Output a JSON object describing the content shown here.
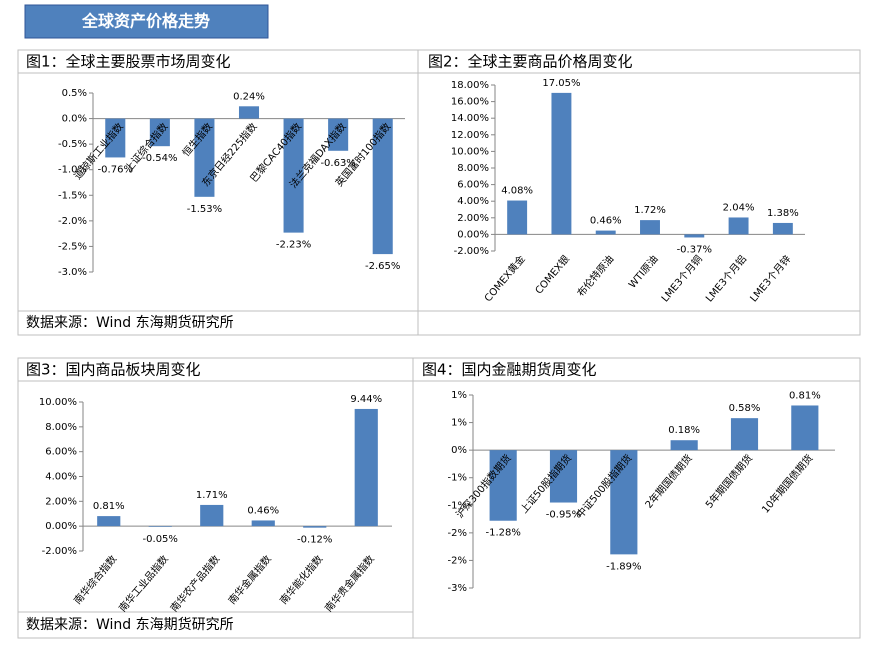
{
  "header": {
    "title": "全球资产价格走势"
  },
  "sources": [
    "数据来源：Wind 东海期货研究所",
    "数据来源：Wind  东海期货研究所"
  ],
  "chart_data": [
    {
      "type": "bar",
      "title": "图1：全球主要股票市场周变化",
      "color": "#4f81bd",
      "categories": [
        "道琼斯工业指数",
        "上证综合指数",
        "恒生指数",
        "东京日经225指数",
        "巴黎CAC40指数",
        "法兰克福DAX指数",
        "英国富时100指数"
      ],
      "values": [
        -0.76,
        -0.54,
        -1.53,
        0.24,
        -2.23,
        -0.63,
        -2.65
      ],
      "value_labels": [
        "-0.76%",
        "-0.54%",
        "-1.53%",
        "0.24%",
        "-2.23%",
        "-0.63%",
        "-2.65%"
      ],
      "ylim": [
        -3,
        0.5
      ],
      "yticks": [
        {
          "value": 0.5,
          "label": "0.5%"
        },
        {
          "value": 0,
          "label": "0.0%"
        },
        {
          "value": -0.5,
          "label": "-0.5%"
        },
        {
          "value": -1,
          "label": "-1.0%"
        },
        {
          "value": -1.5,
          "label": "-1.5%"
        },
        {
          "value": -2,
          "label": "-2.0%"
        },
        {
          "value": -2.5,
          "label": "-2.5%"
        },
        {
          "value": -3,
          "label": "-3.0%"
        }
      ]
    },
    {
      "type": "bar",
      "title": "图2：全球主要商品价格周变化",
      "color": "#4f81bd",
      "categories": [
        "COMEX黄金",
        "COMEX银",
        "布伦特原油",
        "WTI原油",
        "LME3个月铜",
        "LME3个月铝",
        "LME3个月锌"
      ],
      "values": [
        4.08,
        17.05,
        0.46,
        1.72,
        -0.37,
        2.04,
        1.38
      ],
      "value_labels": [
        "4.08%",
        "17.05%",
        "0.46%",
        "1.72%",
        "-0.37%",
        "2.04%",
        "1.38%"
      ],
      "ylim": [
        -2,
        18
      ],
      "yticks": [
        {
          "value": 18,
          "label": "18.00%"
        },
        {
          "value": 16,
          "label": "16.00%"
        },
        {
          "value": 14,
          "label": "14.00%"
        },
        {
          "value": 12,
          "label": "12.00%"
        },
        {
          "value": 10,
          "label": "10.00%"
        },
        {
          "value": 8,
          "label": "8.00%"
        },
        {
          "value": 6,
          "label": "6.00%"
        },
        {
          "value": 4,
          "label": "4.00%"
        },
        {
          "value": 2,
          "label": "2.00%"
        },
        {
          "value": 0,
          "label": "0.00%"
        },
        {
          "value": -2,
          "label": "-2.00%"
        }
      ]
    },
    {
      "type": "bar",
      "title": "图3：国内商品板块周变化",
      "color": "#4f81bd",
      "categories": [
        "南华综合指数",
        "南华工业品指数",
        "南华农产品指数",
        "南华金属指数",
        "南华能化指数",
        "南华贵金属指数"
      ],
      "values": [
        0.81,
        -0.05,
        1.71,
        0.46,
        -0.12,
        9.44
      ],
      "value_labels": [
        "0.81%",
        "-0.05%",
        "1.71%",
        "0.46%",
        "-0.12%",
        "9.44%"
      ],
      "ylim": [
        -2,
        10
      ],
      "yticks": [
        {
          "value": 10,
          "label": "10.00%"
        },
        {
          "value": 8,
          "label": "8.00%"
        },
        {
          "value": 6,
          "label": "6.00%"
        },
        {
          "value": 4,
          "label": "4.00%"
        },
        {
          "value": 2,
          "label": "2.00%"
        },
        {
          "value": 0,
          "label": "0.00%"
        },
        {
          "value": -2,
          "label": "-2.00%"
        }
      ]
    },
    {
      "type": "bar",
      "title": "图4：国内金融期货周变化",
      "color": "#4f81bd",
      "categories": [
        "沪深300指数期货",
        "上证50股指期货",
        "中证500股指期货",
        "2年期国债期货",
        "5年期国债期货",
        "10年期国债期货"
      ],
      "values": [
        -1.28,
        -0.95,
        -1.89,
        0.18,
        0.58,
        0.81
      ],
      "value_labels": [
        "-1.28%",
        "-0.95%",
        "-1.89%",
        "0.18%",
        "0.58%",
        "0.81%"
      ],
      "ylim": [
        -2.5,
        1
      ],
      "yticks": [
        {
          "value": 1,
          "label": "1%"
        },
        {
          "value": 0.5,
          "label": "1%"
        },
        {
          "value": 0,
          "label": "0%"
        },
        {
          "value": -0.5,
          "label": "-1%"
        },
        {
          "value": -1,
          "label": "-1%"
        },
        {
          "value": -1.5,
          "label": "-2%"
        },
        {
          "value": -2,
          "label": "-2%"
        },
        {
          "value": -2.5,
          "label": "-3%"
        }
      ]
    }
  ]
}
